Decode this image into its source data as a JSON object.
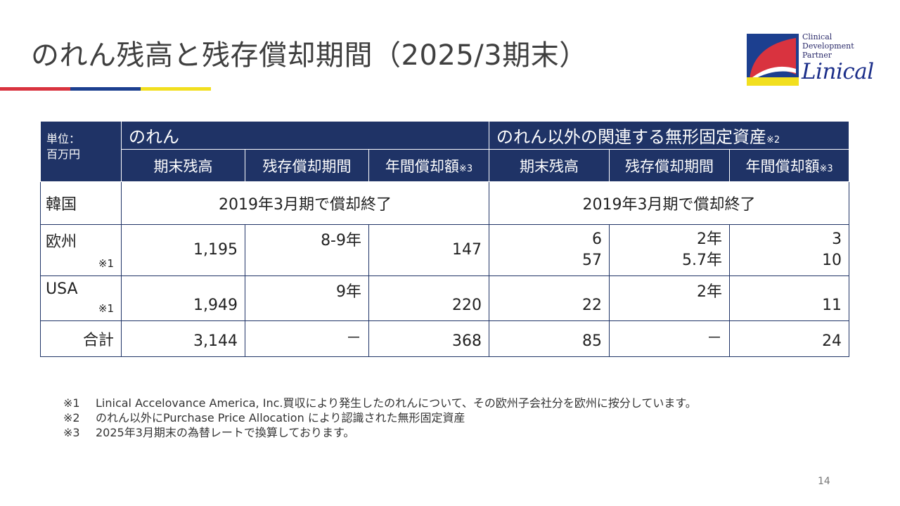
{
  "slide": {
    "title": "のれん残高と残存償却期間（2025/3期末）",
    "page_number": "14"
  },
  "brand": {
    "accent_colors": [
      "#d9333f",
      "#1c3f8f",
      "#f2df1f"
    ],
    "header_color": "#1f3366",
    "logo": {
      "tagline_1": "Clinical",
      "tagline_2": "Development",
      "tagline_3": "Partner",
      "wordmark": "Linical"
    }
  },
  "table": {
    "unit_label_1": "単位：",
    "unit_label_2": "百万円",
    "group_goodwill": "のれん",
    "group_intangibles": "のれん以外の関連する無形固定資産",
    "group_intangibles_note": "※2",
    "col_balance": "期末残高",
    "col_period": "残存償却期間",
    "col_annual": "年間償却額",
    "col_annual_note": "※3",
    "rows": [
      {
        "label": "韓国",
        "goodwill_text": "2019年3月期で償却終了",
        "intangibles_text": "2019年3月期で償却終了"
      },
      {
        "label": "欧州",
        "mark": "※1",
        "goodwill_balance": "1,195",
        "goodwill_period": "8-9年",
        "goodwill_annual": "147",
        "intangibles_balance_1": "6",
        "intangibles_balance_2": "57",
        "intangibles_period_1": "2年",
        "intangibles_period_2": "5.7年",
        "intangibles_annual_1": "3",
        "intangibles_annual_2": "10"
      },
      {
        "label": "USA",
        "mark": "※1",
        "goodwill_balance": "1,949",
        "goodwill_period": "9年",
        "goodwill_annual": "220",
        "intangibles_balance": "22",
        "intangibles_period": "2年",
        "intangibles_annual": "11"
      },
      {
        "label": "合計",
        "goodwill_balance": "3,144",
        "goodwill_period": "－",
        "goodwill_annual": "368",
        "intangibles_balance": "85",
        "intangibles_period": "－",
        "intangibles_annual": "24"
      }
    ]
  },
  "footnotes": [
    {
      "mark": "※1",
      "text": "Linical Accelovance America, Inc.買収により発生したのれんについて、その欧州子会社分を欧州に按分しています。"
    },
    {
      "mark": "※2",
      "text": "のれん以外にPurchase Price Allocation により認識された無形固定資産"
    },
    {
      "mark": "※3",
      "text": "2025年3月期末の為替レートで換算しております。"
    }
  ]
}
